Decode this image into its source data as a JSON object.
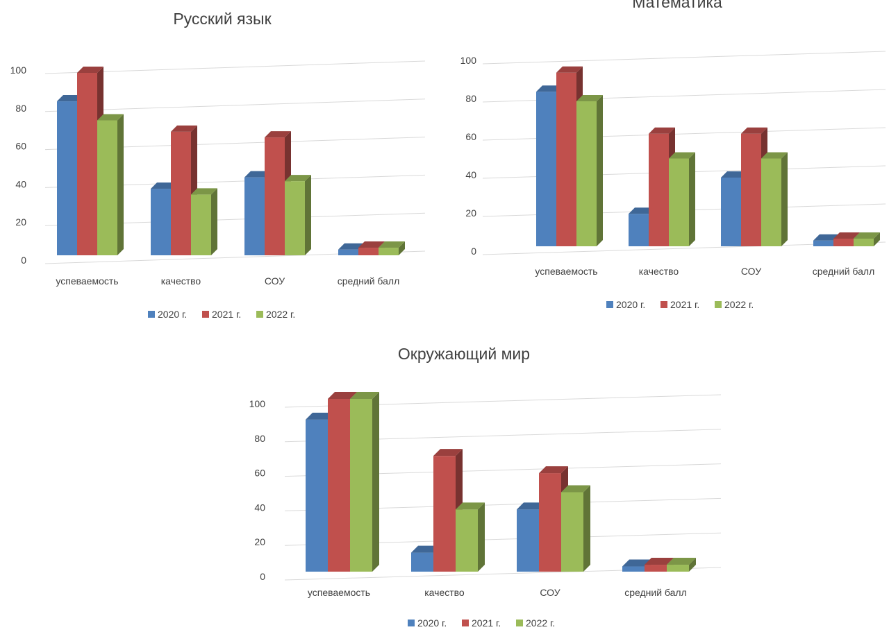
{
  "colors": {
    "2020": "#4f81bd",
    "2021": "#c0504d",
    "2022": "#9bbb59"
  },
  "chart_data": [
    {
      "type": "bar",
      "title": "Русский язык",
      "categories": [
        "успеваемость",
        "качество",
        "СОУ",
        "средний балл"
      ],
      "series": [
        {
          "name": "2020 г.",
          "values": [
            81,
            35,
            41,
            3
          ]
        },
        {
          "name": "2021 г.",
          "values": [
            96,
            65,
            62,
            4
          ]
        },
        {
          "name": "2022 г.",
          "values": [
            71,
            32,
            39,
            4
          ]
        }
      ],
      "yticks": [
        "0",
        "20",
        "40",
        "60",
        "80",
        "100"
      ],
      "ylim": [
        0,
        100
      ],
      "grid": true,
      "legend": "bottom"
    },
    {
      "type": "bar",
      "title": "Математика",
      "categories": [
        "успеваемость",
        "качество",
        "СОУ",
        "средний балл"
      ],
      "series": [
        {
          "name": "2020 г.",
          "values": [
            81,
            17,
            36,
            3
          ]
        },
        {
          "name": "2021 г.",
          "values": [
            91,
            59,
            59,
            4
          ]
        },
        {
          "name": "2022 г.",
          "values": [
            76,
            46,
            46,
            4
          ]
        }
      ],
      "yticks": [
        "0",
        "20",
        "40",
        "60",
        "80",
        "100"
      ],
      "ylim": [
        0,
        100
      ],
      "grid": true,
      "legend": "bottom"
    },
    {
      "type": "bar",
      "title": "Окружающий мир",
      "categories": [
        "успеваемость",
        "качество",
        "СОУ",
        "средний балл"
      ],
      "series": [
        {
          "name": "2020 г.",
          "values": [
            88,
            11,
            36,
            3
          ]
        },
        {
          "name": "2021 г.",
          "values": [
            100,
            67,
            57,
            4
          ]
        },
        {
          "name": "2022 г.",
          "values": [
            100,
            36,
            46,
            4
          ]
        }
      ],
      "yticks": [
        "0",
        "20",
        "40",
        "60",
        "80",
        "100"
      ],
      "ylim": [
        0,
        100
      ],
      "grid": true,
      "legend": "bottom"
    }
  ]
}
